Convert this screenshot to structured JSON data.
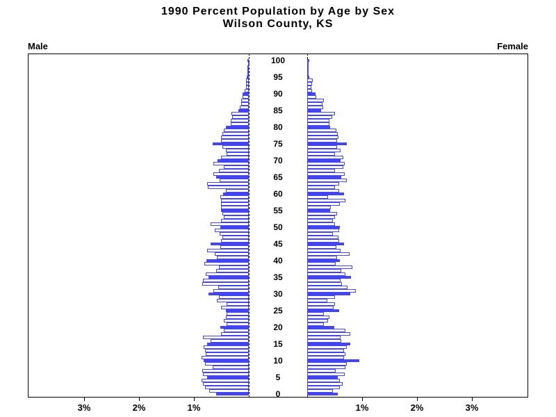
{
  "title": {
    "line1": "1990  Percent  Population  by  Age  by  Sex",
    "line2": "Wilson  County,  KS"
  },
  "side_labels": {
    "left": "Male",
    "right": "Female"
  },
  "colors": {
    "bar_blue": "#4545ee",
    "bar_outline": "#4545ee",
    "bar_unfilled_fill": "#ffffff",
    "frame": "#000000",
    "text": "#000000"
  },
  "axis": {
    "left_tick_labels": [
      "3%",
      "2%",
      "1%"
    ],
    "right_tick_labels": [
      "1%",
      "2%",
      "3%"
    ],
    "age_tick_labels": [
      100,
      95,
      90,
      85,
      80,
      75,
      70,
      65,
      60,
      55,
      50,
      45,
      40,
      35,
      30,
      25,
      20,
      15,
      10,
      5,
      0
    ]
  },
  "chart_data": {
    "type": "bar",
    "variant": "population-pyramid",
    "title": "1990 Percent Population by Age by Sex",
    "subtitle": "Wilson County, KS",
    "x_unit": "percent of total population",
    "xlim_each_side": [
      0,
      3.5
    ],
    "x_ticks_percent": [
      1,
      2,
      3
    ],
    "age_axis": {
      "min": 0,
      "max": 100,
      "step": 1,
      "labeled_every": 5
    },
    "highlight_every_5_years": true,
    "legend_position": "none",
    "grid": false,
    "ages": [
      0,
      1,
      2,
      3,
      4,
      5,
      6,
      7,
      8,
      9,
      10,
      11,
      12,
      13,
      14,
      15,
      16,
      17,
      18,
      19,
      20,
      21,
      22,
      23,
      24,
      25,
      26,
      27,
      28,
      29,
      30,
      31,
      32,
      33,
      34,
      35,
      36,
      37,
      38,
      39,
      40,
      41,
      42,
      43,
      44,
      45,
      46,
      47,
      48,
      49,
      50,
      51,
      52,
      53,
      54,
      55,
      56,
      57,
      58,
      59,
      60,
      61,
      62,
      63,
      64,
      65,
      66,
      67,
      68,
      69,
      70,
      71,
      72,
      73,
      74,
      75,
      76,
      77,
      78,
      79,
      80,
      81,
      82,
      83,
      84,
      85,
      86,
      87,
      88,
      89,
      90,
      91,
      92,
      93,
      94,
      95,
      96,
      97,
      98,
      99,
      100
    ],
    "series": [
      {
        "name": "Male",
        "values": [
          0.6,
          0.72,
          0.8,
          0.83,
          0.86,
          0.76,
          0.83,
          0.85,
          0.66,
          0.8,
          0.82,
          0.86,
          0.78,
          0.8,
          0.82,
          0.76,
          0.7,
          0.84,
          0.5,
          0.45,
          0.52,
          0.4,
          0.46,
          0.42,
          0.4,
          0.42,
          0.5,
          0.4,
          0.58,
          0.55,
          0.74,
          0.65,
          0.56,
          0.85,
          0.84,
          0.73,
          0.78,
          0.6,
          0.55,
          0.81,
          0.77,
          0.58,
          0.62,
          0.76,
          0.52,
          0.7,
          0.5,
          0.48,
          0.53,
          0.62,
          0.52,
          0.7,
          0.5,
          0.46,
          0.48,
          0.5,
          0.51,
          0.51,
          0.51,
          0.52,
          0.47,
          0.42,
          0.75,
          0.76,
          0.53,
          0.6,
          0.65,
          0.55,
          0.45,
          0.65,
          0.57,
          0.51,
          0.4,
          0.42,
          0.48,
          0.66,
          0.5,
          0.5,
          0.48,
          0.46,
          0.42,
          0.33,
          0.33,
          0.3,
          0.32,
          0.19,
          0.16,
          0.14,
          0.14,
          0.12,
          0.12,
          0.07,
          0.05,
          0.05,
          0.05,
          0.04,
          0.03,
          0.02,
          0.03,
          0.01,
          0.03
        ]
      },
      {
        "name": "Female",
        "values": [
          0.56,
          0.47,
          0.6,
          0.64,
          0.6,
          0.56,
          0.68,
          0.52,
          0.7,
          0.72,
          0.95,
          0.67,
          0.69,
          0.67,
          0.72,
          0.79,
          0.62,
          0.61,
          0.78,
          0.7,
          0.49,
          0.3,
          0.38,
          0.4,
          0.31,
          0.58,
          0.48,
          0.51,
          0.37,
          0.51,
          0.79,
          0.88,
          0.73,
          0.63,
          0.61,
          0.8,
          0.7,
          0.62,
          0.82,
          0.52,
          0.6,
          0.55,
          0.77,
          0.61,
          0.53,
          0.67,
          0.58,
          0.57,
          0.47,
          0.58,
          0.6,
          0.5,
          0.47,
          0.5,
          0.55,
          0.42,
          0.43,
          0.59,
          0.7,
          0.38,
          0.67,
          0.58,
          0.51,
          0.58,
          0.72,
          0.62,
          0.68,
          0.51,
          0.66,
          0.68,
          0.61,
          0.66,
          0.5,
          0.61,
          0.55,
          0.72,
          0.55,
          0.57,
          0.56,
          0.53,
          0.42,
          0.4,
          0.41,
          0.45,
          0.5,
          0.25,
          0.29,
          0.28,
          0.31,
          0.17,
          0.15,
          0.09,
          0.07,
          0.09,
          0.1,
          0.04,
          0.03,
          0.02,
          0.02,
          0.02,
          0.04
        ]
      }
    ]
  }
}
